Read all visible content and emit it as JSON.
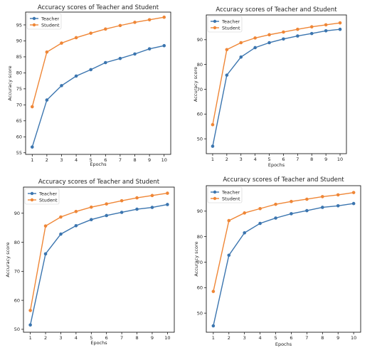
{
  "chart_data": [
    {
      "type": "line",
      "title": "Accuracy scores of Teacher and Student",
      "xlabel": "Epochs",
      "ylabel": "Accuracy score",
      "x": [
        1,
        2,
        3,
        4,
        5,
        6,
        7,
        8,
        9,
        10
      ],
      "ylim": [
        54.5,
        99
      ],
      "yticks": [
        55,
        60,
        65,
        70,
        75,
        80,
        85,
        90,
        95
      ],
      "grid": false,
      "legend": "top-left",
      "series": [
        {
          "name": "Teacher",
          "color": "#3b75af",
          "values": [
            56.8,
            71.5,
            76.0,
            79.0,
            81.0,
            83.2,
            84.5,
            85.9,
            87.5,
            88.5
          ]
        },
        {
          "name": "Student",
          "color": "#ef8636",
          "values": [
            69.4,
            86.5,
            89.3,
            91.0,
            92.4,
            93.7,
            94.8,
            95.8,
            96.6,
            97.4
          ]
        }
      ]
    },
    {
      "type": "line",
      "title": "Accuracy scores of Teacher and Student",
      "xlabel": "Epochs",
      "ylabel": "Accuracy score",
      "x": [
        1,
        2,
        3,
        4,
        5,
        6,
        7,
        8,
        9,
        10
      ],
      "ylim": [
        44,
        100
      ],
      "yticks": [
        50,
        60,
        70,
        80,
        90
      ],
      "grid": false,
      "legend": "top-left",
      "series": [
        {
          "name": "Teacher",
          "color": "#3b75af",
          "values": [
            47.0,
            75.7,
            83.0,
            86.8,
            88.8,
            90.3,
            91.5,
            92.5,
            93.6,
            94.2
          ]
        },
        {
          "name": "Student",
          "color": "#ef8636",
          "values": [
            55.7,
            86.0,
            88.8,
            90.7,
            92.0,
            93.1,
            94.2,
            95.2,
            96.0,
            96.8
          ]
        }
      ]
    },
    {
      "type": "line",
      "title": "Accuracy scores of Teacher and Student",
      "xlabel": "Epochs",
      "ylabel": "Accuracy score",
      "x": [
        1,
        2,
        3,
        4,
        5,
        6,
        7,
        8,
        9,
        10
      ],
      "ylim": [
        49,
        99
      ],
      "yticks": [
        50,
        60,
        70,
        80,
        90
      ],
      "grid": false,
      "legend": "top-left",
      "series": [
        {
          "name": "Teacher",
          "color": "#3b75af",
          "values": [
            51.5,
            76.0,
            82.8,
            85.7,
            87.8,
            89.2,
            90.3,
            91.4,
            92.0,
            93.0
          ]
        },
        {
          "name": "Student",
          "color": "#ef8636",
          "values": [
            56.5,
            85.6,
            88.7,
            90.6,
            92.1,
            93.2,
            94.3,
            95.3,
            96.1,
            96.9
          ]
        }
      ]
    },
    {
      "type": "line",
      "title": "Accuracy scores of Teacher and Student",
      "xlabel": "Epochs",
      "ylabel": "Accuracy score",
      "x": [
        1,
        2,
        3,
        4,
        5,
        6,
        7,
        8,
        9,
        10
      ],
      "ylim": [
        42.5,
        100
      ],
      "yticks": [
        50,
        60,
        70,
        80,
        90
      ],
      "grid": false,
      "legend": "top-left",
      "series": [
        {
          "name": "Teacher",
          "color": "#3b75af",
          "values": [
            45.0,
            72.7,
            81.5,
            85.2,
            87.3,
            89.0,
            90.2,
            91.5,
            92.1,
            93.0
          ]
        },
        {
          "name": "Student",
          "color": "#ef8636",
          "values": [
            58.5,
            86.3,
            89.3,
            91.0,
            92.7,
            93.8,
            94.7,
            95.7,
            96.4,
            97.3
          ]
        }
      ]
    }
  ]
}
